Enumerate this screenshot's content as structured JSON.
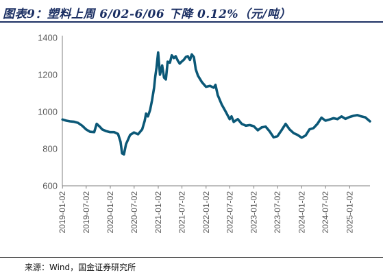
{
  "title": "图表9：塑料上周 6/02-6/06 下降 0.12%（元/吨）",
  "source": "来源：Wind，国金证券研究所",
  "chart_data": {
    "type": "line",
    "title": "",
    "xlabel": "",
    "ylabel": "",
    "ylim": [
      600,
      1400
    ],
    "yticks": [
      600,
      800,
      1000,
      1200,
      1400
    ],
    "xlim": [
      "2019-01-01",
      "2025-06-06"
    ],
    "xticks": [
      "2019-01-02",
      "2019-07-02",
      "2020-01-02",
      "2020-07-02",
      "2021-01-02",
      "2021-07-02",
      "2022-01-02",
      "2022-07-02",
      "2023-01-02",
      "2023-07-02",
      "2024-01-02",
      "2024-07-02",
      "2025-01-02"
    ],
    "grid": false,
    "legend": "none",
    "color": "#0b5877",
    "series": [
      {
        "x": [
          "2019-01-02",
          "2019-02-01",
          "2019-03-01",
          "2019-04-01",
          "2019-05-01",
          "2019-06-01",
          "2019-07-01",
          "2019-08-01",
          "2019-09-01",
          "2019-09-20",
          "2019-10-15",
          "2019-11-01",
          "2019-12-01",
          "2020-01-01",
          "2020-02-01",
          "2020-03-01",
          "2020-03-20",
          "2020-04-01",
          "2020-04-15",
          "2020-05-01",
          "2020-06-01",
          "2020-07-01",
          "2020-08-01",
          "2020-09-01",
          "2020-09-20",
          "2020-10-01",
          "2020-10-15",
          "2020-11-01",
          "2020-11-15",
          "2020-12-01",
          "2020-12-10",
          "2020-12-20",
          "2021-01-01",
          "2021-01-15",
          "2021-02-01",
          "2021-02-15",
          "2021-03-01",
          "2021-03-15",
          "2021-04-01",
          "2021-04-15",
          "2021-05-01",
          "2021-05-15",
          "2021-06-01",
          "2021-06-15",
          "2021-07-01",
          "2021-07-15",
          "2021-08-01",
          "2021-08-15",
          "2021-09-01",
          "2021-09-15",
          "2021-10-01",
          "2021-10-15",
          "2021-11-01",
          "2021-12-01",
          "2022-01-01",
          "2022-02-01",
          "2022-03-01",
          "2022-03-15",
          "2022-04-01",
          "2022-05-01",
          "2022-06-01",
          "2022-07-01",
          "2022-07-15",
          "2022-08-01",
          "2022-09-01",
          "2022-10-01",
          "2022-11-01",
          "2022-12-01",
          "2023-01-01",
          "2023-02-01",
          "2023-03-01",
          "2023-04-01",
          "2023-05-01",
          "2023-06-01",
          "2023-07-01",
          "2023-08-01",
          "2023-09-01",
          "2023-10-01",
          "2023-11-01",
          "2023-12-01",
          "2024-01-01",
          "2024-02-01",
          "2024-03-01",
          "2024-04-01",
          "2024-05-01",
          "2024-06-01",
          "2024-07-01",
          "2024-08-01",
          "2024-09-01",
          "2024-10-01",
          "2024-11-01",
          "2024-12-01",
          "2025-01-01",
          "2025-02-01",
          "2025-03-01",
          "2025-04-01",
          "2025-05-01",
          "2025-06-06"
        ],
        "y": [
          958,
          952,
          948,
          946,
          940,
          925,
          905,
          892,
          890,
          935,
          918,
          905,
          895,
          890,
          890,
          880,
          838,
          775,
          770,
          825,
          875,
          888,
          878,
          905,
          950,
          990,
          975,
          1010,
          1060,
          1130,
          1190,
          1240,
          1320,
          1200,
          1250,
          1185,
          1175,
          1270,
          1265,
          1305,
          1290,
          1300,
          1275,
          1260,
          1272,
          1280,
          1296,
          1300,
          1280,
          1310,
          1295,
          1230,
          1195,
          1160,
          1135,
          1140,
          1130,
          1145,
          1090,
          1040,
          1000,
          960,
          975,
          945,
          960,
          935,
          925,
          928,
          922,
          900,
          915,
          920,
          895,
          862,
          868,
          900,
          935,
          905,
          885,
          875,
          860,
          872,
          905,
          912,
          935,
          968,
          952,
          958,
          965,
          960,
          975,
          962,
          972,
          978,
          982,
          975,
          970,
          948
        ]
      }
    ]
  }
}
